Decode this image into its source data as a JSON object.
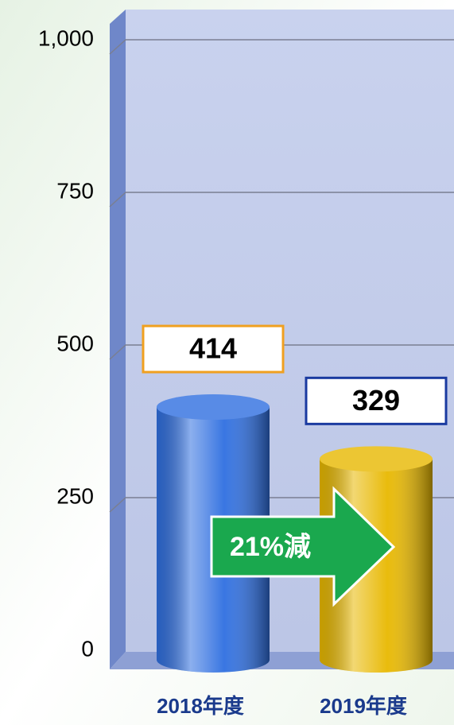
{
  "chart_data": {
    "type": "bar",
    "categories": [
      "2018年度",
      "2019年度"
    ],
    "values": [
      414,
      329
    ],
    "colors": [
      "#2f6fe0",
      "#e8b800"
    ],
    "label_colors": [
      "#f0a020",
      "#1a3aa0"
    ],
    "ylim": [
      0,
      1000
    ],
    "yticks": [
      0,
      250,
      500,
      750,
      {
        "value": 1000,
        "label": "1,000"
      }
    ],
    "grid": true,
    "annotation": "21%減"
  }
}
